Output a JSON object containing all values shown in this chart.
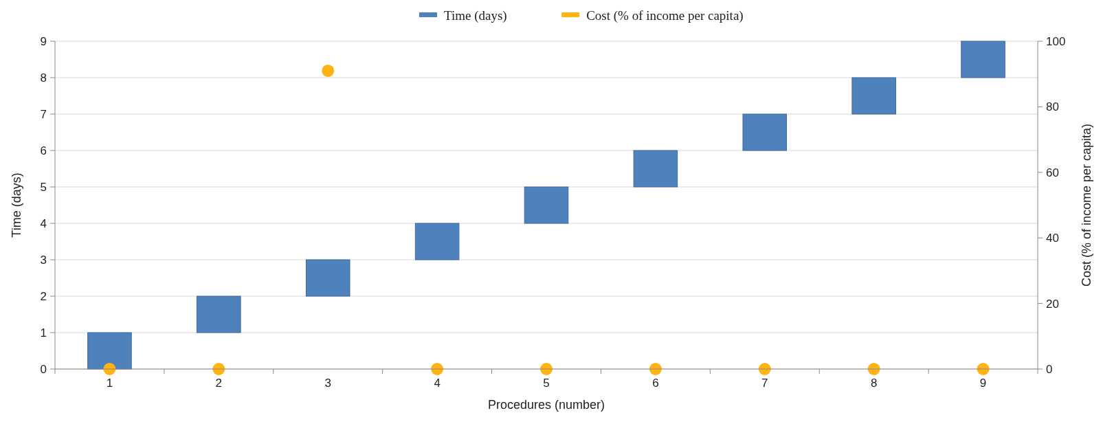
{
  "chart_data": {
    "type": "bar",
    "xlabel": "Procedures (number)",
    "ylabel": "Time (days)",
    "y2label": "Cost (% of income per capita)",
    "categories": [
      "1",
      "2",
      "3",
      "4",
      "5",
      "6",
      "7",
      "8",
      "9"
    ],
    "series": [
      {
        "name": "Time (days)",
        "type": "bar",
        "color": "#4f81bd",
        "values": [
          1,
          1,
          1,
          1,
          1,
          1,
          1,
          1,
          1
        ],
        "base": [
          0,
          1,
          2,
          3,
          4,
          5,
          6,
          7,
          8
        ]
      },
      {
        "name": "Cost (% of income per capita)",
        "type": "scatter",
        "axis": "y2",
        "color": "#ffb414",
        "x": [
          "1",
          "2",
          "3",
          "4",
          "5",
          "6",
          "7",
          "8",
          "9"
        ],
        "values": [
          0,
          0,
          91,
          0,
          0,
          0,
          0,
          0,
          0
        ]
      }
    ],
    "ylim": [
      0,
      9
    ],
    "yticks": [
      0,
      1,
      2,
      3,
      4,
      5,
      6,
      7,
      8,
      9
    ],
    "y2lim": [
      0,
      100
    ],
    "y2ticks": [
      0,
      20,
      40,
      60,
      80,
      100
    ],
    "grid": "y",
    "legend": "top",
    "marker": "circle"
  }
}
